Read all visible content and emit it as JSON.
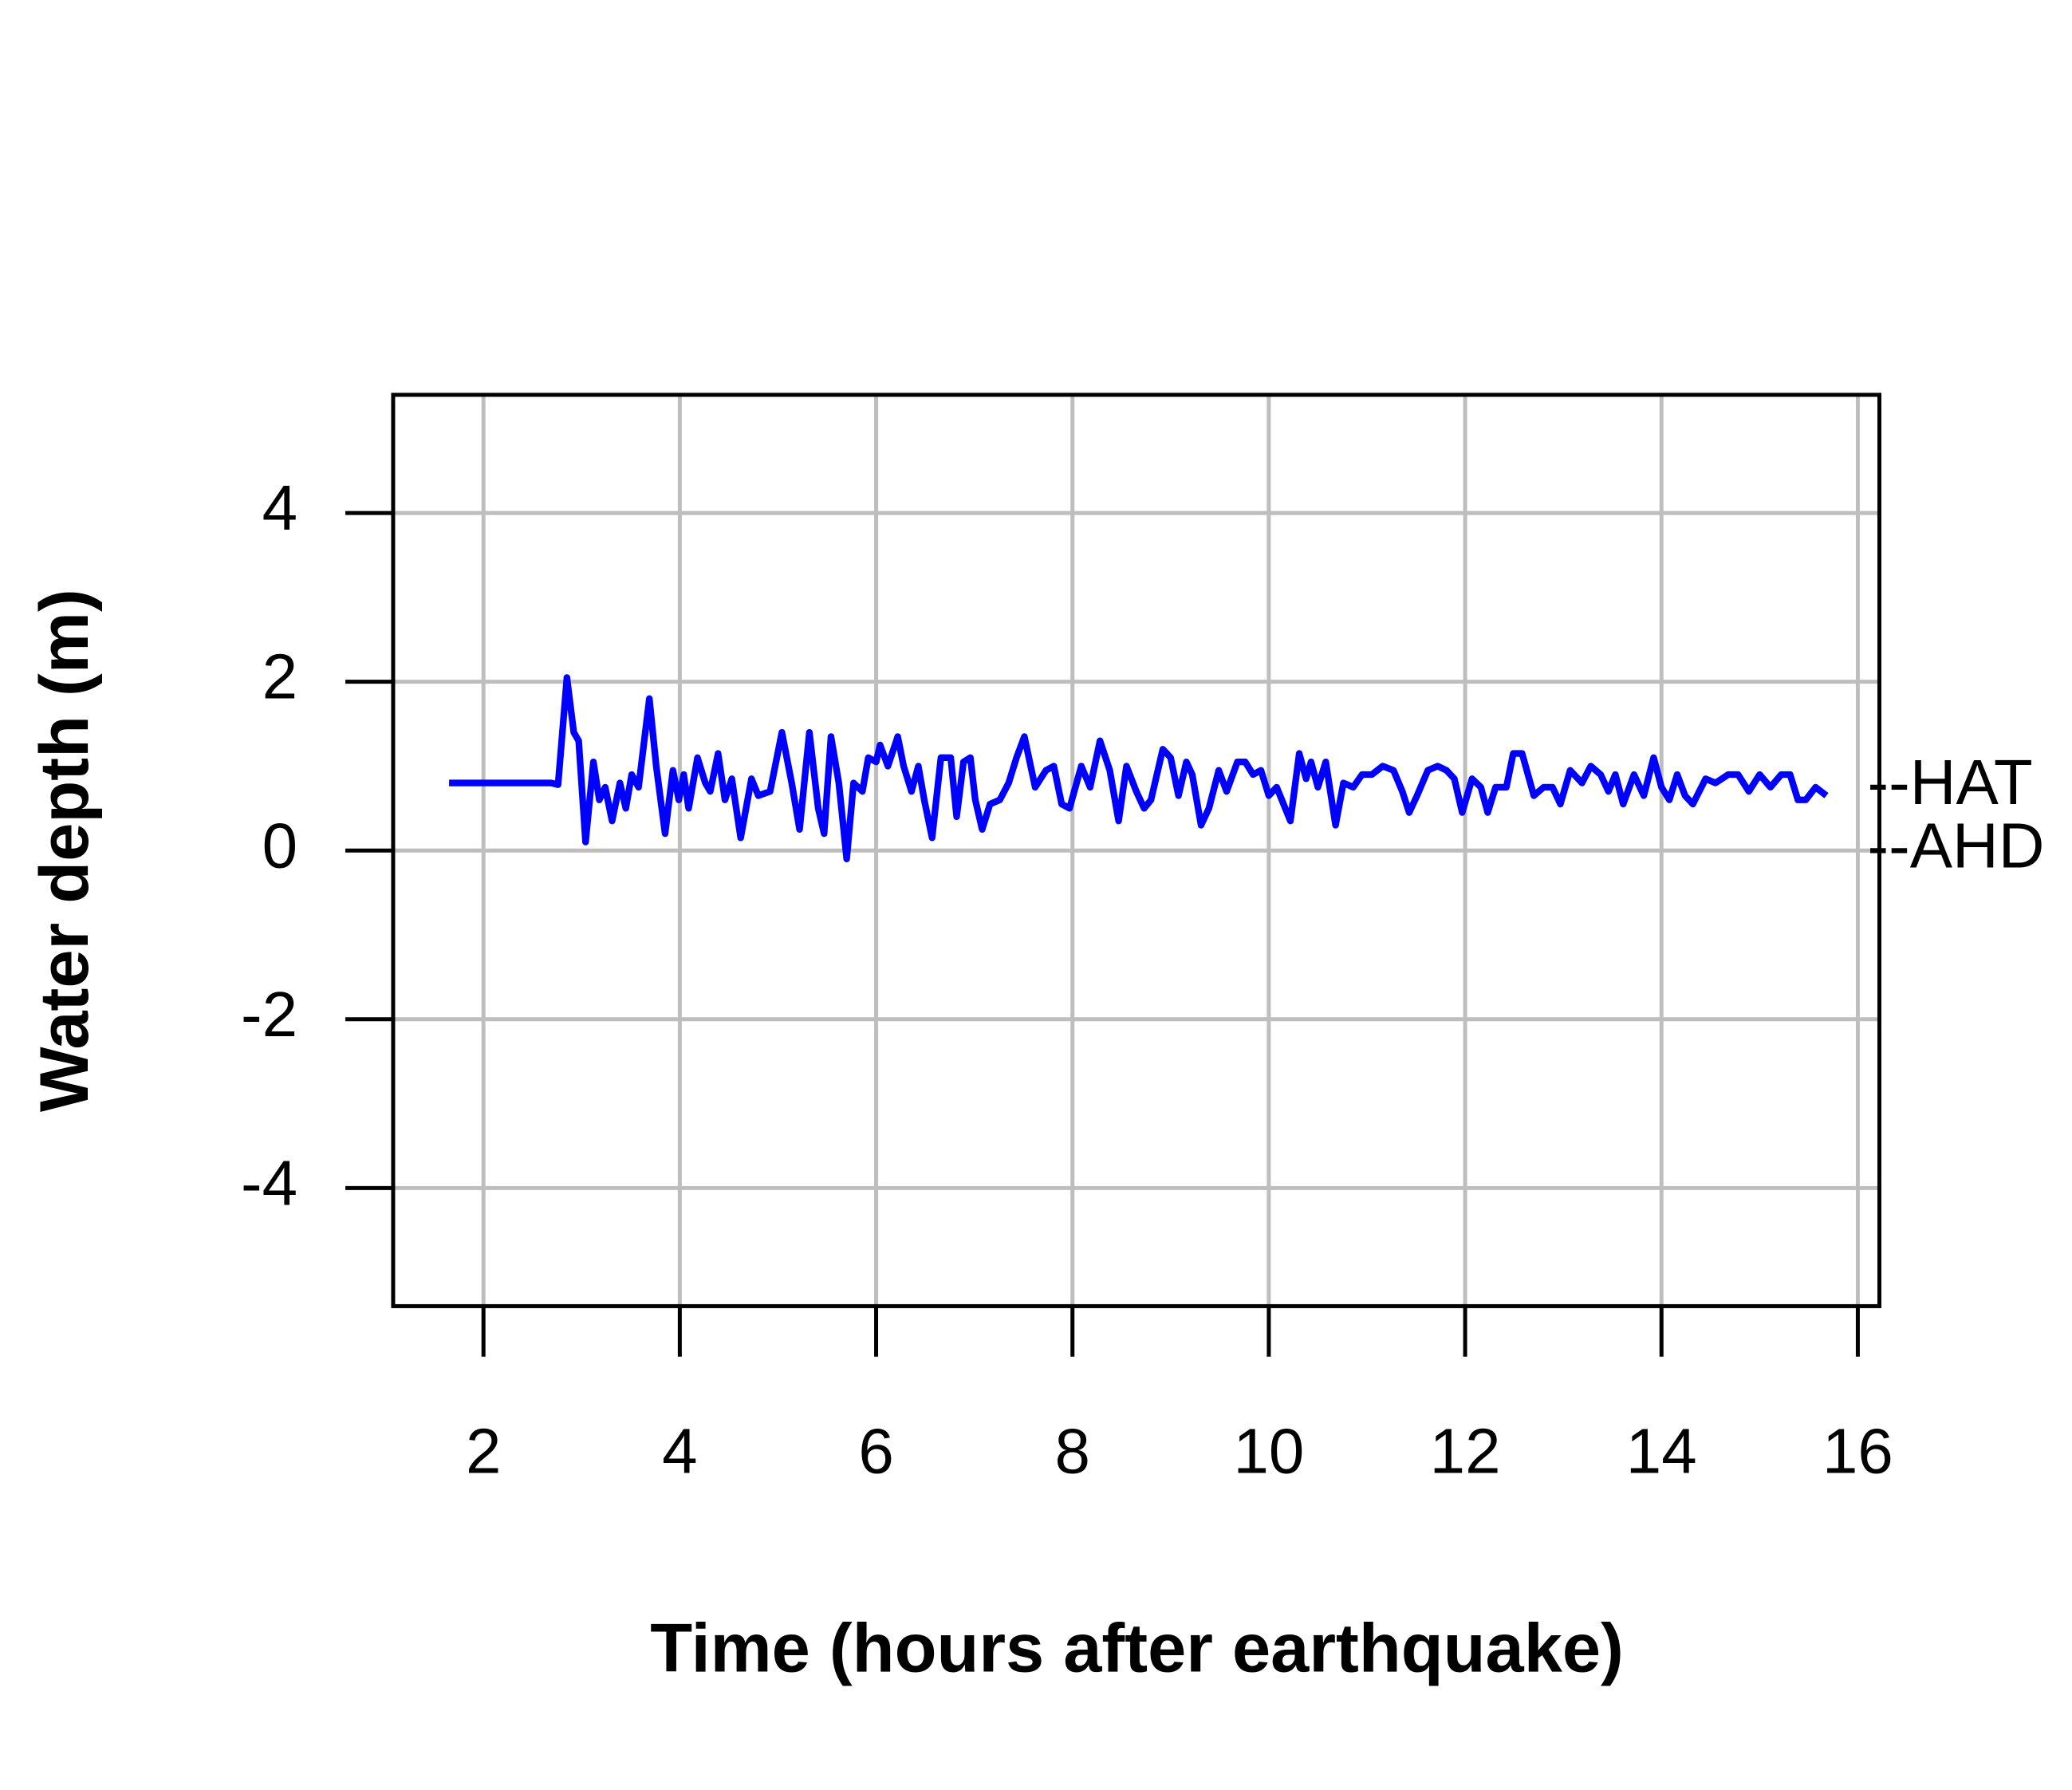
{
  "chart_data": {
    "type": "line",
    "xlabel": "Time (hours after earthquake)",
    "ylabel": "Water depth (m)",
    "xlim": [
      1.08,
      16.22
    ],
    "ylim": [
      -5.4,
      5.4
    ],
    "xticks": [
      2,
      4,
      6,
      8,
      10,
      12,
      14,
      16
    ],
    "yticks": [
      -4,
      -2,
      0,
      2,
      4
    ],
    "grid": true,
    "annotations": [
      {
        "text": "--HAT",
        "y": 0.75
      },
      {
        "text": "--AHD",
        "y": 0
      }
    ],
    "x": [
      1.65,
      2.69,
      2.76,
      2.85,
      2.92,
      2.97,
      3.04,
      3.12,
      3.18,
      3.24,
      3.31,
      3.39,
      3.45,
      3.51,
      3.58,
      3.69,
      3.76,
      3.85,
      3.93,
      3.99,
      4.04,
      4.09,
      4.18,
      4.26,
      4.31,
      4.39,
      4.46,
      4.53,
      4.62,
      4.73,
      4.8,
      4.92,
      5.04,
      5.14,
      5.22,
      5.32,
      5.41,
      5.47,
      5.54,
      5.62,
      5.7,
      5.77,
      5.86,
      5.92,
      6.0,
      6.04,
      6.12,
      6.22,
      6.28,
      6.36,
      6.43,
      6.49,
      6.57,
      6.66,
      6.76,
      6.82,
      6.89,
      6.96,
      7.01,
      7.08,
      7.16,
      7.26,
      7.35,
      7.43,
      7.51,
      7.62,
      7.73,
      7.81,
      7.89,
      7.97,
      8.09,
      8.18,
      8.28,
      8.38,
      8.47,
      8.55,
      8.65,
      8.73,
      8.8,
      8.92,
      9.0,
      9.08,
      9.16,
      9.22,
      9.31,
      9.39,
      9.49,
      9.57,
      9.68,
      9.76,
      9.84,
      9.92,
      10.0,
      10.08,
      10.22,
      10.31,
      10.38,
      10.43,
      10.5,
      10.58,
      10.68,
      10.76,
      10.86,
      10.95,
      11.05,
      11.16,
      11.27,
      11.36,
      11.43,
      11.51,
      11.62,
      11.72,
      11.81,
      11.89,
      11.97,
      12.07,
      12.16,
      12.23,
      12.31,
      12.42,
      12.49,
      12.58,
      12.7,
      12.8,
      12.89,
      12.97,
      13.07,
      13.19,
      13.28,
      13.38,
      13.46,
      13.53,
      13.61,
      13.72,
      13.82,
      13.92,
      14.0,
      14.08,
      14.16,
      14.24,
      14.32,
      14.45,
      14.55,
      14.68,
      14.78,
      14.89,
      15.0,
      15.11,
      15.22,
      15.31,
      15.39,
      15.47,
      15.57,
      15.68
    ],
    "series": [
      {
        "color": "#0000ff",
        "values": [
          0.8,
          0.8,
          0.78,
          2.05,
          1.4,
          1.3,
          0.1,
          1.05,
          0.6,
          0.75,
          0.35,
          0.8,
          0.5,
          0.9,
          0.75,
          1.8,
          1.0,
          0.2,
          0.95,
          0.6,
          0.9,
          0.5,
          1.1,
          0.8,
          0.7,
          1.15,
          0.6,
          0.85,
          0.15,
          0.85,
          0.65,
          0.7,
          1.4,
          0.8,
          0.25,
          1.4,
          0.5,
          0.2,
          1.35,
          0.8,
          -0.1,
          0.8,
          0.7,
          1.1,
          1.05,
          1.25,
          1.0,
          1.35,
          1.0,
          0.7,
          1.0,
          0.6,
          0.15,
          1.1,
          1.1,
          0.4,
          1.05,
          1.1,
          0.6,
          0.25,
          0.55,
          0.6,
          0.8,
          1.1,
          1.35,
          0.75,
          0.95,
          1.0,
          0.55,
          0.5,
          1.0,
          0.75,
          1.3,
          0.95,
          0.35,
          1.0,
          0.7,
          0.5,
          0.6,
          1.2,
          1.1,
          0.65,
          1.05,
          0.9,
          0.3,
          0.5,
          0.95,
          0.7,
          1.05,
          1.05,
          0.9,
          0.95,
          0.65,
          0.75,
          0.35,
          1.15,
          0.85,
          1.05,
          0.75,
          1.05,
          0.3,
          0.8,
          0.75,
          0.9,
          0.9,
          1.0,
          0.95,
          0.7,
          0.45,
          0.65,
          0.95,
          1.0,
          0.95,
          0.85,
          0.45,
          0.85,
          0.75,
          0.45,
          0.75,
          0.75,
          1.15,
          1.15,
          0.65,
          0.75,
          0.75,
          0.55,
          0.95,
          0.8,
          1.0,
          0.9,
          0.7,
          0.9,
          0.55,
          0.9,
          0.65,
          1.1,
          0.75,
          0.6,
          0.9,
          0.65,
          0.55,
          0.85,
          0.8,
          0.9,
          0.9,
          0.7,
          0.9,
          0.75,
          0.9,
          0.9,
          0.6,
          0.6,
          0.75,
          0.65
        ]
      }
    ]
  }
}
